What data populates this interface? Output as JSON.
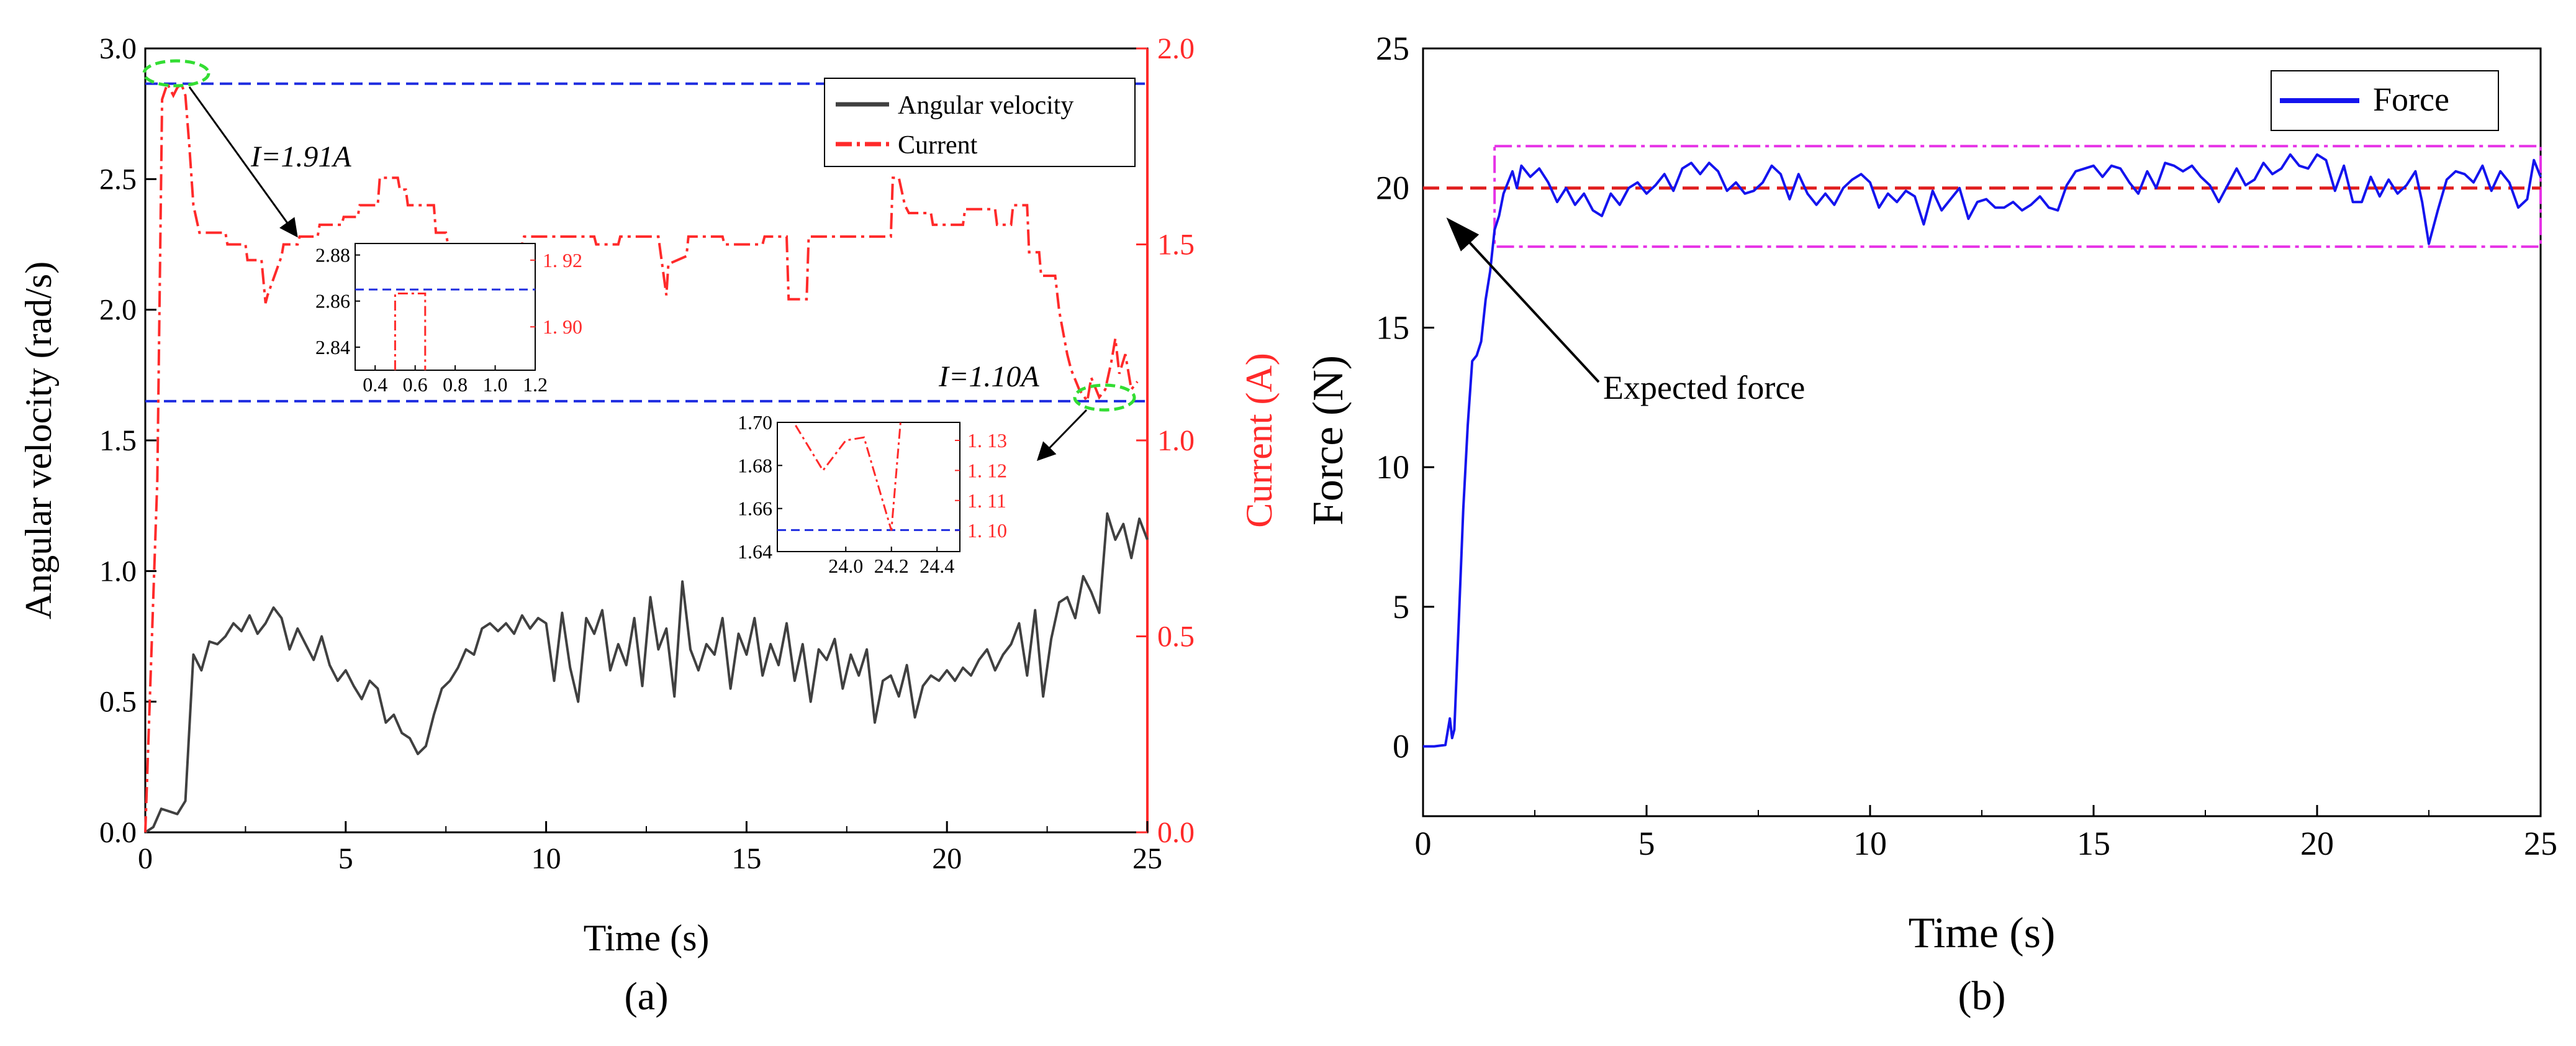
{
  "colors": {
    "angular_velocity": "#404040",
    "current": "#ff2a2a",
    "reference_line": "#1f2de0",
    "force": "#1414ee",
    "expected_force": "#e01e1e",
    "band": "#e632e6",
    "highlight": "#33dd33",
    "axis": "#000000"
  },
  "chart_data": [
    {
      "type": "line",
      "panel_label": "(a)",
      "xlabel": "Time (s)",
      "ylabel": "Angular velocity (rad/s)",
      "y2label": "Current (A)",
      "xlim": [
        0,
        25
      ],
      "ylim": [
        0,
        3.0
      ],
      "y2lim": [
        0,
        2.0
      ],
      "xticks": [
        "0",
        "5",
        "10",
        "15",
        "20",
        "25"
      ],
      "yticks": [
        "0.0",
        "0.5",
        "1.0",
        "1.5",
        "2.0",
        "2.5",
        "3.0"
      ],
      "y2ticks": [
        "0.0",
        "0.5",
        "1.0",
        "1.5",
        "2.0"
      ],
      "legend": [
        "Angular velocity",
        "Current"
      ],
      "series": [
        {
          "name": "Angular velocity",
          "axis": "left",
          "x": [
            0.0,
            0.2,
            0.4,
            0.6,
            0.8,
            1.0,
            1.2,
            1.4,
            1.6,
            1.8,
            2.0,
            2.2,
            2.4,
            2.6,
            2.8,
            3.0,
            3.2,
            3.4,
            3.6,
            3.8,
            4.0,
            4.2,
            4.4,
            4.6,
            4.8,
            5.0,
            5.2,
            5.4,
            5.6,
            5.8,
            6.0,
            6.2,
            6.4,
            6.6,
            6.8,
            7.0,
            7.2,
            7.4,
            7.6,
            7.8,
            8.0,
            8.2,
            8.4,
            8.6,
            8.8,
            9.0,
            9.2,
            9.4,
            9.6,
            9.8,
            10.0,
            10.2,
            10.4,
            10.6,
            10.8,
            11.0,
            11.2,
            11.4,
            11.6,
            11.8,
            12.0,
            12.2,
            12.4,
            12.6,
            12.8,
            13.0,
            13.2,
            13.4,
            13.6,
            13.8,
            14.0,
            14.2,
            14.4,
            14.6,
            14.8,
            15.0,
            15.2,
            15.4,
            15.6,
            15.8,
            16.0,
            16.2,
            16.4,
            16.6,
            16.8,
            17.0,
            17.2,
            17.4,
            17.6,
            17.8,
            18.0,
            18.2,
            18.4,
            18.6,
            18.8,
            19.0,
            19.2,
            19.4,
            19.6,
            19.8,
            20.0,
            20.2,
            20.4,
            20.6,
            20.8,
            21.0,
            21.2,
            21.4,
            21.6,
            21.8,
            22.0,
            22.2,
            22.4,
            22.6,
            22.8,
            23.0,
            23.2,
            23.4,
            23.6,
            23.8,
            24.0,
            24.2,
            24.4,
            24.6,
            24.8,
            25.0
          ],
          "values": [
            0.0,
            0.02,
            0.09,
            0.08,
            0.07,
            0.12,
            0.68,
            0.62,
            0.73,
            0.72,
            0.75,
            0.8,
            0.77,
            0.83,
            0.76,
            0.8,
            0.86,
            0.82,
            0.7,
            0.78,
            0.72,
            0.66,
            0.75,
            0.64,
            0.58,
            0.62,
            0.56,
            0.51,
            0.58,
            0.55,
            0.42,
            0.45,
            0.38,
            0.36,
            0.3,
            0.33,
            0.45,
            0.55,
            0.58,
            0.63,
            0.7,
            0.68,
            0.78,
            0.8,
            0.77,
            0.8,
            0.76,
            0.83,
            0.78,
            0.82,
            0.8,
            0.58,
            0.84,
            0.63,
            0.5,
            0.82,
            0.76,
            0.85,
            0.62,
            0.72,
            0.64,
            0.82,
            0.56,
            0.9,
            0.7,
            0.78,
            0.52,
            0.96,
            0.7,
            0.62,
            0.72,
            0.68,
            0.82,
            0.55,
            0.76,
            0.68,
            0.82,
            0.6,
            0.72,
            0.64,
            0.8,
            0.58,
            0.72,
            0.5,
            0.7,
            0.66,
            0.74,
            0.55,
            0.68,
            0.6,
            0.7,
            0.42,
            0.58,
            0.6,
            0.52,
            0.64,
            0.44,
            0.56,
            0.6,
            0.58,
            0.62,
            0.58,
            0.63,
            0.6,
            0.66,
            0.7,
            0.62,
            0.68,
            0.72,
            0.8,
            0.6,
            0.85,
            0.52,
            0.74,
            0.88,
            0.9,
            0.82,
            0.98,
            0.92,
            0.84,
            1.22,
            1.12,
            1.18,
            1.05,
            1.2,
            1.12
          ]
        },
        {
          "name": "Current",
          "axis": "right",
          "x": [
            0.0,
            0.3,
            0.42,
            0.55,
            0.7,
            0.8,
            0.9,
            1.0,
            1.1,
            1.2,
            1.35,
            2.0,
            2.05,
            2.5,
            2.55,
            2.9,
            3.0,
            3.05,
            3.4,
            3.45,
            3.8,
            3.85,
            4.3,
            4.35,
            4.9,
            4.95,
            5.3,
            5.35,
            5.8,
            5.85,
            6.3,
            6.35,
            6.5,
            6.55,
            7.2,
            7.25,
            7.5,
            7.55,
            7.9,
            7.95,
            8.3,
            8.35,
            9.4,
            9.45,
            10.3,
            10.35,
            10.9,
            10.95,
            11.2,
            11.25,
            11.8,
            11.85,
            12.8,
            13.0,
            13.05,
            13.5,
            13.55,
            14.4,
            14.45,
            15.4,
            15.45,
            16.0,
            16.05,
            16.5,
            16.55,
            18.6,
            18.65,
            18.8,
            18.95,
            19.05,
            19.6,
            19.65,
            20.4,
            20.45,
            21.2,
            21.25,
            21.6,
            21.65,
            22.0,
            22.05,
            22.3,
            22.35,
            22.7,
            22.8,
            23.0,
            23.1,
            23.3,
            23.5,
            23.6,
            23.8,
            23.95,
            24.1,
            24.2,
            24.3,
            24.45,
            24.6,
            24.75
          ],
          "values": [
            0.0,
            0.9,
            1.87,
            1.91,
            1.88,
            1.9,
            1.91,
            1.88,
            1.75,
            1.6,
            1.53,
            1.53,
            1.5,
            1.5,
            1.46,
            1.46,
            1.35,
            1.37,
            1.47,
            1.5,
            1.5,
            1.52,
            1.52,
            1.55,
            1.55,
            1.57,
            1.57,
            1.6,
            1.6,
            1.67,
            1.67,
            1.64,
            1.64,
            1.6,
            1.6,
            1.53,
            1.53,
            1.5,
            1.5,
            1.5,
            1.5,
            1.5,
            1.5,
            1.52,
            1.52,
            1.52,
            1.52,
            1.52,
            1.52,
            1.5,
            1.5,
            1.52,
            1.52,
            1.37,
            1.45,
            1.47,
            1.52,
            1.52,
            1.5,
            1.5,
            1.52,
            1.52,
            1.36,
            1.36,
            1.52,
            1.52,
            1.67,
            1.67,
            1.6,
            1.58,
            1.58,
            1.55,
            1.55,
            1.59,
            1.59,
            1.55,
            1.55,
            1.6,
            1.6,
            1.48,
            1.48,
            1.42,
            1.42,
            1.33,
            1.22,
            1.18,
            1.13,
            1.1,
            1.16,
            1.11,
            1.13,
            1.2,
            1.26,
            1.17,
            1.22,
            1.13,
            1.15
          ]
        }
      ],
      "reference_lines": [
        {
          "axis": "right",
          "value": 1.91,
          "label": "I=1.91A"
        },
        {
          "axis": "right",
          "value": 1.1,
          "label": "I=1.10A"
        }
      ],
      "insets": [
        {
          "name": "inset-peak",
          "xlim": [
            0.3,
            1.2
          ],
          "ylim": [
            2.83,
            2.885
          ],
          "y2lim": [
            1.887,
            1.925
          ],
          "xticks": [
            "0.4",
            "0.6",
            "0.8",
            "1.0",
            "1.2"
          ],
          "yticks": [
            "2.84",
            "2.86",
            "2.88"
          ],
          "y2ticks": [
            "1. 90",
            "1. 92"
          ],
          "reference": 2.865,
          "current_x": [
            0.5,
            0.5,
            0.65,
            0.65
          ],
          "current_y": [
            1.886,
            1.91,
            1.91,
            1.886
          ]
        },
        {
          "name": "inset-end",
          "xlim": [
            23.7,
            24.5
          ],
          "ylim": [
            1.64,
            1.7
          ],
          "y2lim": [
            1.093,
            1.136
          ],
          "xticks": [
            "24.0",
            "24.2",
            "24.4"
          ],
          "yticks": [
            "1.64",
            "1.66",
            "1.68",
            "1.70"
          ],
          "y2ticks": [
            "1. 10",
            "1. 11",
            "1. 12",
            "1. 13"
          ],
          "reference": 1.65,
          "current_x": [
            23.78,
            23.9,
            24.0,
            24.08,
            24.2,
            24.24
          ],
          "current_y": [
            1.135,
            1.12,
            1.13,
            1.131,
            1.1,
            1.138
          ]
        }
      ]
    },
    {
      "type": "line",
      "panel_label": "(b)",
      "xlabel": "Time (s)",
      "ylabel": "Force (N)",
      "xlim": [
        0,
        25
      ],
      "ylim": [
        -2.5,
        25
      ],
      "xticks": [
        "0",
        "5",
        "10",
        "15",
        "20",
        "25"
      ],
      "yticks": [
        "0",
        "5",
        "10",
        "15",
        "20",
        "25"
      ],
      "legend": [
        "Force"
      ],
      "series": [
        {
          "name": "Force",
          "x": [
            0.0,
            0.25,
            0.5,
            0.6,
            0.65,
            0.7,
            0.8,
            0.9,
            1.0,
            1.1,
            1.2,
            1.3,
            1.4,
            1.5,
            1.6,
            1.7,
            1.8,
            1.9,
            2.0,
            2.1,
            2.2,
            2.4,
            2.6,
            2.8,
            3.0,
            3.2,
            3.4,
            3.6,
            3.8,
            4.0,
            4.2,
            4.4,
            4.6,
            4.8,
            5.0,
            5.2,
            5.4,
            5.6,
            5.8,
            6.0,
            6.2,
            6.4,
            6.6,
            6.8,
            7.0,
            7.2,
            7.4,
            7.6,
            7.8,
            8.0,
            8.2,
            8.4,
            8.6,
            8.8,
            9.0,
            9.2,
            9.4,
            9.6,
            9.8,
            10.0,
            10.2,
            10.4,
            10.6,
            10.8,
            11.0,
            11.2,
            11.4,
            11.6,
            11.8,
            12.0,
            12.2,
            12.4,
            12.6,
            12.8,
            13.0,
            13.2,
            13.4,
            13.6,
            13.8,
            14.0,
            14.2,
            14.4,
            14.6,
            14.8,
            15.0,
            15.2,
            15.4,
            15.6,
            15.8,
            16.0,
            16.2,
            16.4,
            16.6,
            16.8,
            17.0,
            17.2,
            17.4,
            17.6,
            17.8,
            18.0,
            18.2,
            18.4,
            18.6,
            18.8,
            19.0,
            19.2,
            19.4,
            19.6,
            19.8,
            20.0,
            20.2,
            20.4,
            20.6,
            20.8,
            21.0,
            21.2,
            21.4,
            21.6,
            21.8,
            22.0,
            22.2,
            22.35,
            22.5,
            22.7,
            22.9,
            23.1,
            23.3,
            23.5,
            23.7,
            23.9,
            24.1,
            24.3,
            24.5,
            24.7,
            24.85,
            25.0
          ],
          "values": [
            0.0,
            0.0,
            0.05,
            1.0,
            0.3,
            0.6,
            4.5,
            8.5,
            11.5,
            13.8,
            14.0,
            14.5,
            16.0,
            17.0,
            18.5,
            19.0,
            19.8,
            20.2,
            20.6,
            20.0,
            20.8,
            20.4,
            20.7,
            20.2,
            19.5,
            20.0,
            19.4,
            19.8,
            19.2,
            19.0,
            19.8,
            19.4,
            20.0,
            20.2,
            19.8,
            20.1,
            20.5,
            19.9,
            20.7,
            20.9,
            20.5,
            20.9,
            20.6,
            19.9,
            20.2,
            19.8,
            19.9,
            20.2,
            20.8,
            20.5,
            19.6,
            20.5,
            19.8,
            19.4,
            19.8,
            19.4,
            20.0,
            20.3,
            20.5,
            20.2,
            19.3,
            19.8,
            19.5,
            19.9,
            19.7,
            18.7,
            19.9,
            19.2,
            19.6,
            20.0,
            18.9,
            19.5,
            19.6,
            19.3,
            19.3,
            19.5,
            19.2,
            19.4,
            19.7,
            19.3,
            19.2,
            20.1,
            20.6,
            20.7,
            20.8,
            20.4,
            20.8,
            20.7,
            20.2,
            19.8,
            20.6,
            20.0,
            20.9,
            20.8,
            20.6,
            20.8,
            20.4,
            20.1,
            19.5,
            20.1,
            20.7,
            20.1,
            20.3,
            20.9,
            20.5,
            20.7,
            21.2,
            20.8,
            20.7,
            21.2,
            21.0,
            19.9,
            20.8,
            19.5,
            19.5,
            20.4,
            19.7,
            20.3,
            19.8,
            20.1,
            20.6,
            19.5,
            18.0,
            19.2,
            20.3,
            20.6,
            20.5,
            20.2,
            20.8,
            19.9,
            20.6,
            20.2,
            19.3,
            19.6,
            21.0,
            20.4
          ]
        }
      ],
      "expected_force": 20,
      "band": [
        17.9,
        21.5
      ],
      "band_start": 1.6,
      "annotation": "Expected force"
    }
  ]
}
